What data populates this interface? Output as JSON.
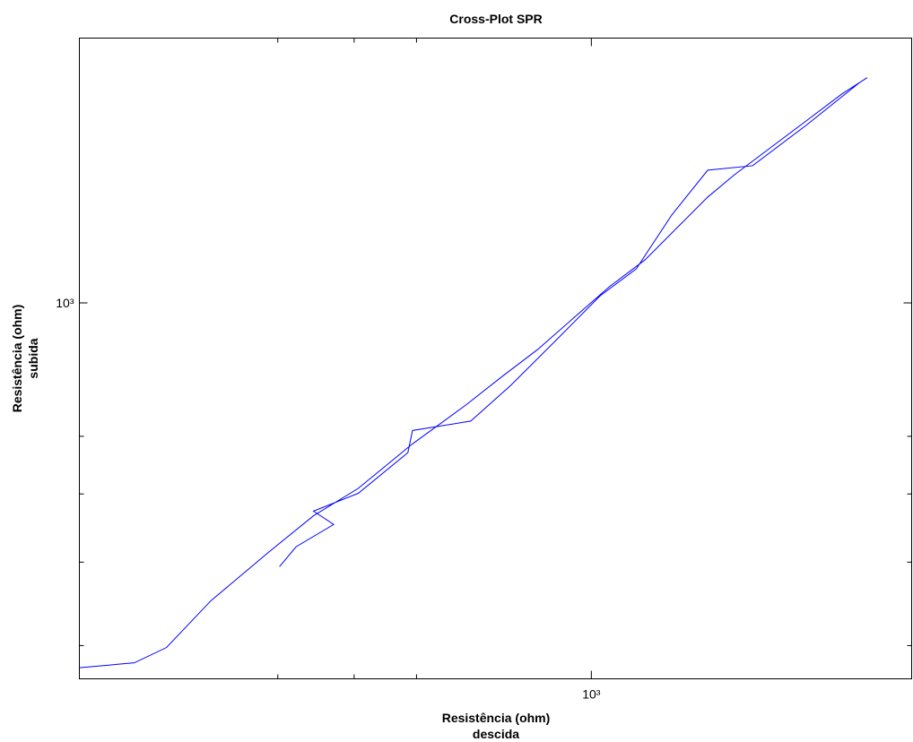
{
  "chart_data": {
    "type": "line",
    "title": "Cross-Plot SPR",
    "x_label": [
      "Resistência (ohm)",
      "descida"
    ],
    "y_label": [
      "Resistência (ohm)",
      "subida"
    ],
    "xscale": "log",
    "yscale": "log",
    "grid": false,
    "xlim": [
      224,
      2550
    ],
    "ylim": [
      366,
      2030
    ],
    "xticks": [
      {
        "value": 1000,
        "label": "10³"
      }
    ],
    "yticks": [
      {
        "value": 1000,
        "label": "10³"
      }
    ],
    "xminorticks": [
      400,
      500,
      600
    ],
    "yminorticks": [
      400,
      500,
      600,
      700
    ],
    "series": [
      {
        "color": "#0000ff",
        "x": [
          224,
          263,
          289,
          329,
          390,
          444,
          506,
          593,
          693,
          770,
          855,
          949,
          1054,
          1170,
          1299,
          1405,
          1520,
          1688,
          1874,
          2081,
          2239,
          2193,
          1874,
          1602,
          1405,
          1265,
          1140,
          1026,
          901,
          790,
          703,
          593,
          585,
          506,
          444,
          471,
          422,
          402
        ],
        "values": [
          377,
          382,
          398,
          451,
          514,
          566,
          609,
          686,
          761,
          821,
          883,
          960,
          1044,
          1122,
          1235,
          1327,
          1409,
          1514,
          1627,
          1749,
          1826,
          1804,
          1608,
          1443,
          1426,
          1265,
          1095,
          1019,
          904,
          802,
          729,
          711,
          670,
          601,
          573,
          553,
          521,
          494
        ]
      }
    ]
  }
}
